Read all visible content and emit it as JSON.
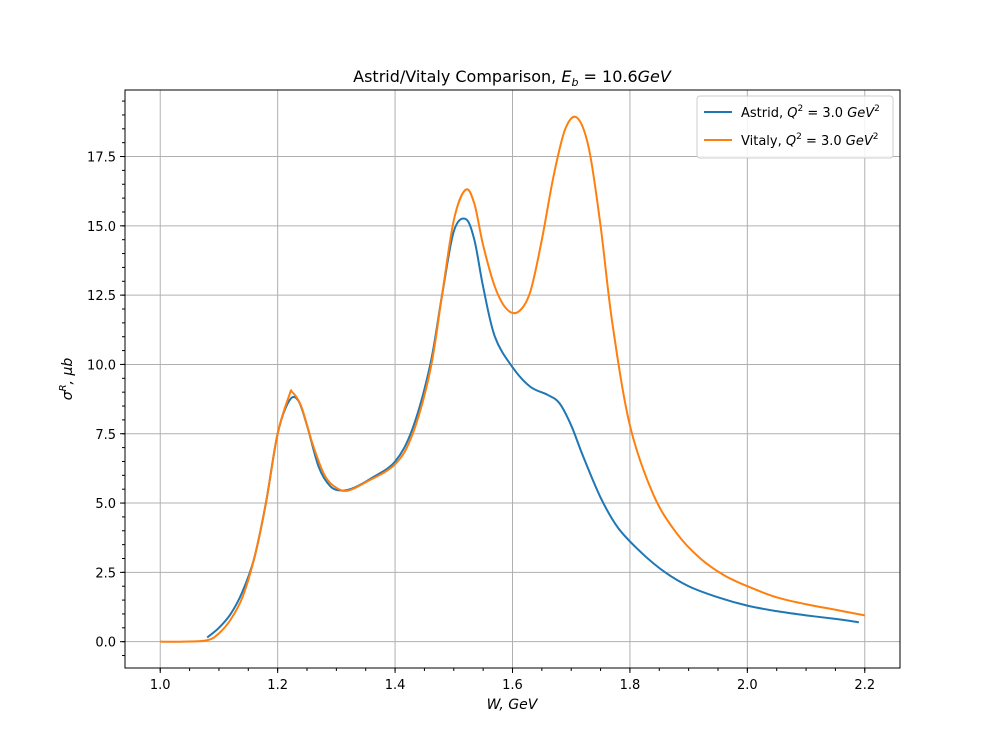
{
  "chart_data": {
    "type": "line",
    "title_prefix": "Astrid/Vitaly Comparison, ",
    "title_math": "E_b = 10.6GeV",
    "xlabel": "W, GeV",
    "ylabel": "σ^R, μb",
    "xlim": [
      0.94,
      2.26
    ],
    "ylim": [
      -0.95,
      19.9
    ],
    "xticks": [
      1.0,
      1.2,
      1.4,
      1.6,
      1.8,
      2.0,
      2.2
    ],
    "xtick_labels": [
      "1.0",
      "1.2",
      "1.4",
      "1.6",
      "1.8",
      "2.0",
      "2.2"
    ],
    "yticks": [
      0.0,
      2.5,
      5.0,
      7.5,
      10.0,
      12.5,
      15.0,
      17.5
    ],
    "ytick_labels": [
      "0.0",
      "2.5",
      "5.0",
      "7.5",
      "10.0",
      "12.5",
      "15.0",
      "17.5"
    ],
    "grid": true,
    "legend_position": "top-right",
    "series": [
      {
        "name": "Astrid, Q^2 = 3.0 GeV^2",
        "legend_prefix": "Astrid, ",
        "color": "#1f77b4",
        "x": [
          1.08,
          1.1,
          1.12,
          1.14,
          1.16,
          1.18,
          1.2,
          1.22,
          1.235,
          1.25,
          1.27,
          1.29,
          1.31,
          1.33,
          1.36,
          1.4,
          1.43,
          1.46,
          1.48,
          1.5,
          1.52,
          1.535,
          1.55,
          1.57,
          1.6,
          1.63,
          1.66,
          1.68,
          1.7,
          1.72,
          1.75,
          1.78,
          1.82,
          1.86,
          1.9,
          1.95,
          2.0,
          2.05,
          2.1,
          2.15,
          2.19
        ],
        "y": [
          0.15,
          0.5,
          1.0,
          1.8,
          3.0,
          5.0,
          7.5,
          8.7,
          8.7,
          7.8,
          6.3,
          5.6,
          5.45,
          5.55,
          5.9,
          6.5,
          7.7,
          10.0,
          12.5,
          14.8,
          15.25,
          14.5,
          12.8,
          11.0,
          9.9,
          9.2,
          8.9,
          8.6,
          7.8,
          6.7,
          5.2,
          4.1,
          3.2,
          2.5,
          2.0,
          1.6,
          1.3,
          1.1,
          0.95,
          0.82,
          0.7
        ]
      },
      {
        "name": "Vitaly, Q^2 = 3.0 GeV^2",
        "legend_prefix": "Vitaly, ",
        "color": "#ff7f0e",
        "x": [
          1.0,
          1.04,
          1.08,
          1.1,
          1.12,
          1.14,
          1.16,
          1.18,
          1.2,
          1.22,
          1.225,
          1.24,
          1.26,
          1.28,
          1.3,
          1.32,
          1.35,
          1.4,
          1.43,
          1.46,
          1.48,
          1.5,
          1.52,
          1.535,
          1.55,
          1.57,
          1.59,
          1.61,
          1.63,
          1.65,
          1.67,
          1.69,
          1.71,
          1.73,
          1.75,
          1.77,
          1.8,
          1.84,
          1.88,
          1.92,
          1.96,
          2.0,
          2.05,
          2.1,
          2.15,
          2.2
        ],
        "y": [
          0.0,
          0.0,
          0.05,
          0.3,
          0.8,
          1.6,
          3.0,
          5.0,
          7.5,
          8.9,
          9.0,
          8.5,
          7.1,
          6.0,
          5.55,
          5.45,
          5.75,
          6.4,
          7.5,
          9.8,
          12.5,
          15.2,
          16.3,
          15.8,
          14.3,
          12.8,
          12.0,
          11.9,
          12.6,
          14.5,
          16.8,
          18.5,
          18.9,
          17.8,
          15.0,
          11.5,
          7.8,
          5.3,
          3.9,
          3.0,
          2.4,
          2.0,
          1.6,
          1.35,
          1.15,
          0.95
        ]
      }
    ]
  }
}
